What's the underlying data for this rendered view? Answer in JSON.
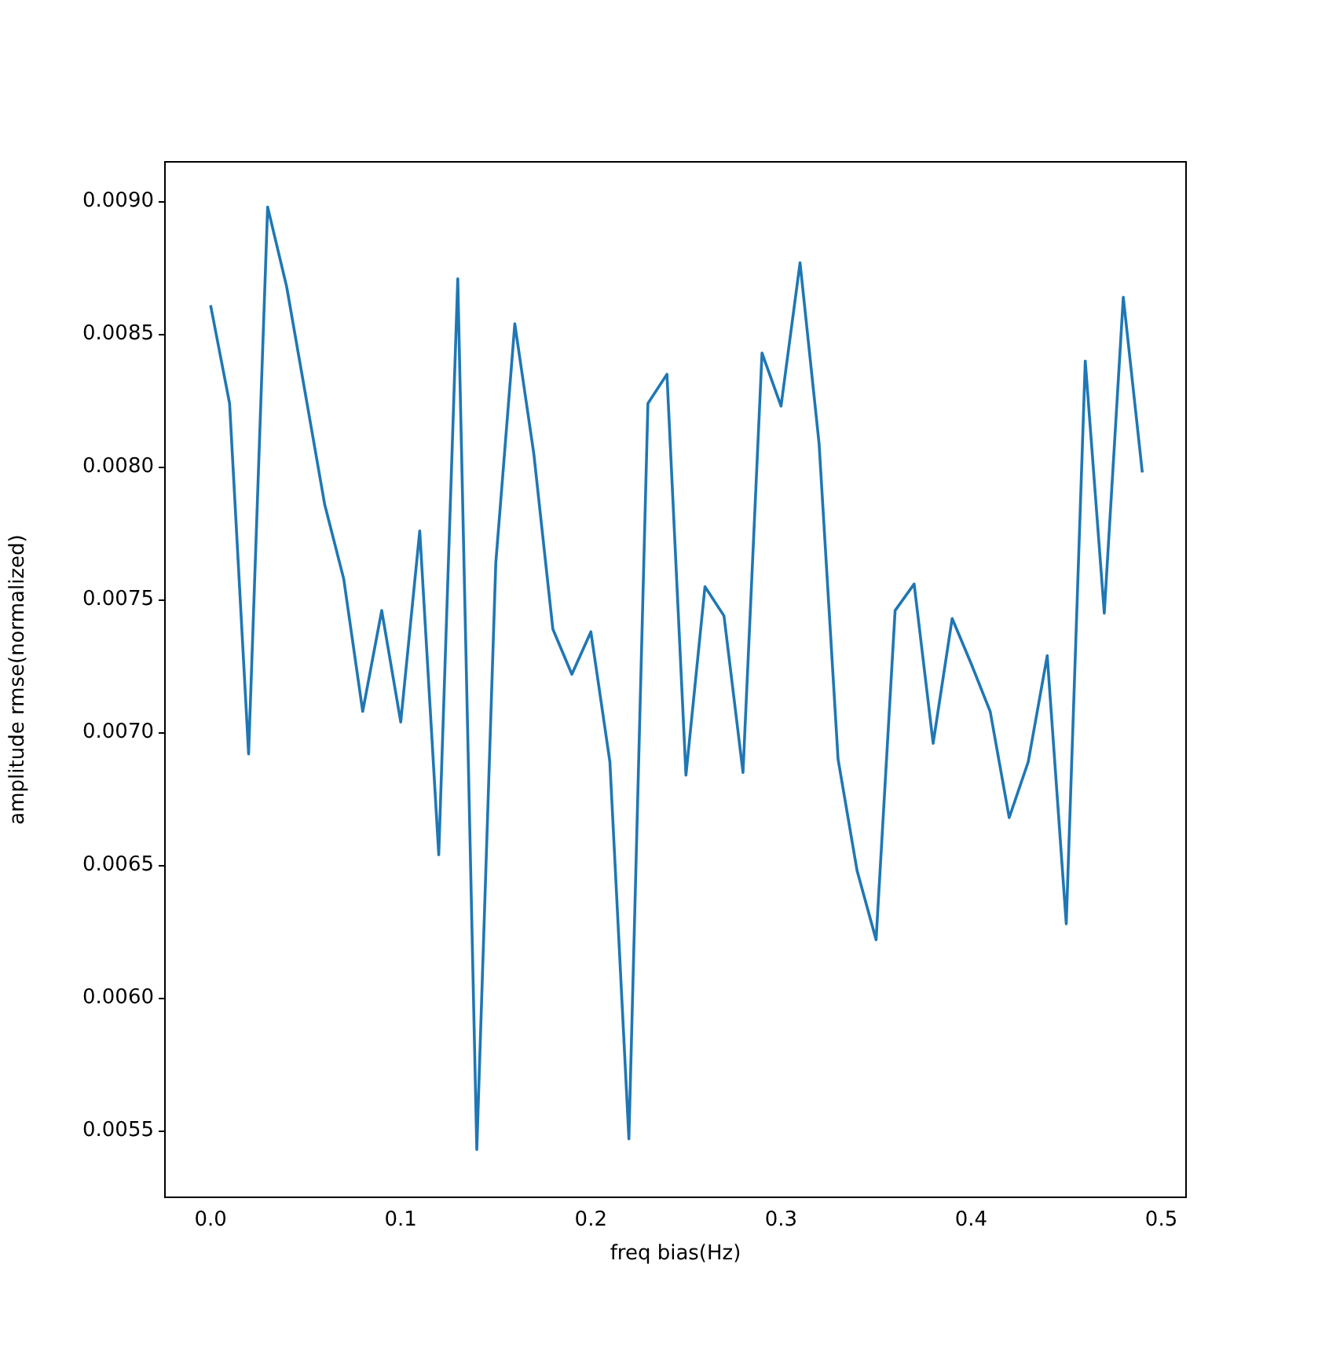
{
  "chart_data": {
    "type": "line",
    "xlabel": "freq bias(Hz)",
    "ylabel": "amplitude rmse(normalized)",
    "x": [
      0,
      0.01,
      0.02,
      0.03,
      0.04,
      0.05,
      0.06,
      0.07,
      0.08,
      0.09,
      0.1,
      0.11,
      0.12,
      0.13,
      0.14,
      0.15,
      0.16,
      0.17,
      0.18,
      0.19,
      0.2,
      0.21,
      0.22,
      0.23,
      0.24,
      0.25,
      0.26,
      0.27,
      0.28,
      0.29,
      0.3,
      0.31,
      0.32,
      0.33,
      0.34,
      0.35,
      0.36,
      0.37,
      0.38,
      0.39,
      0.4,
      0.41,
      0.42,
      0.43,
      0.44,
      0.45,
      0.46,
      0.47,
      0.48,
      0.49
    ],
    "series": [
      {
        "color": "#1f77b4",
        "values": [
          0.00861,
          0.00824,
          0.00692,
          0.00898,
          0.00868,
          0.00827,
          0.00786,
          0.00758,
          0.00708,
          0.00746,
          0.00704,
          0.00776,
          0.00654,
          0.00871,
          0.00543,
          0.00764,
          0.00854,
          0.00805,
          0.00739,
          0.00722,
          0.00738,
          0.00689,
          0.00547,
          0.00824,
          0.00835,
          0.00684,
          0.00755,
          0.00744,
          0.00685,
          0.00843,
          0.00823,
          0.00877,
          0.00809,
          0.0069,
          0.00648,
          0.00622,
          0.00746,
          0.00756,
          0.00696,
          0.00743,
          0.00726,
          0.00708,
          0.00668,
          0.00689,
          0.00729,
          0.00628,
          0.0084,
          0.00745,
          0.00864,
          0.00798
        ]
      }
    ],
    "xlim": [
      -0.024,
      0.513
    ],
    "xticks": [
      {
        "value": 0,
        "label": "0.0"
      },
      0.1,
      0.2,
      0.3,
      0.4,
      {
        "value": 0.5,
        "label": "0.5"
      }
    ],
    "ylim": [
      0.00525,
      0.00915
    ],
    "yticks": [
      {
        "value": 0.0055,
        "label": "0.0055"
      },
      {
        "value": 0.006,
        "label": "0.0060"
      },
      {
        "value": 0.0065,
        "label": "0.0065"
      },
      {
        "value": 0.007,
        "label": "0.0070"
      },
      {
        "value": 0.0075,
        "label": "0.0075"
      },
      {
        "value": 0.008,
        "label": "0.0080"
      },
      {
        "value": 0.0085,
        "label": "0.0085"
      },
      {
        "value": 0.009,
        "label": "0.0090"
      }
    ],
    "grid": false,
    "legend": false,
    "marker": "none",
    "line_style": "solid"
  }
}
